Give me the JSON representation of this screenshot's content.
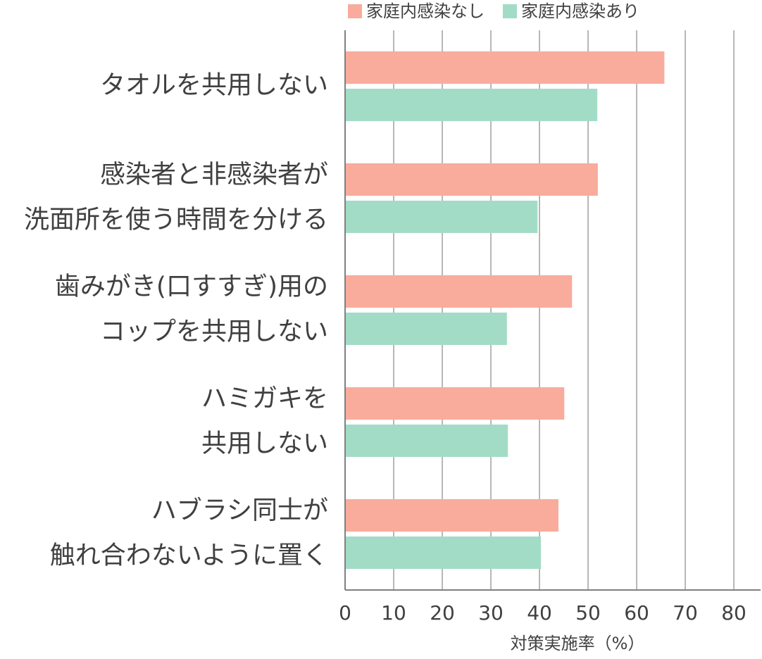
{
  "chart_data": {
    "type": "hbar",
    "x_label": "対策実施率（%）",
    "categories": [
      [
        "タオルを共用しない"
      ],
      [
        "感染者と非感染者が",
        "洗面所を使う時間を分ける"
      ],
      [
        "歯みがき(口すすぎ)用の",
        "コップを共用しない"
      ],
      [
        "ハミガキを",
        "共用しない"
      ],
      [
        "ハブラシ同士が",
        "触れ合わないように置く"
      ]
    ],
    "series": [
      {
        "name": "家庭内感染なし",
        "color": "#f9ab9c",
        "values": [
          65.7,
          52.0,
          46.7,
          45.1,
          43.9
        ]
      },
      {
        "name": "家庭内感染あり",
        "color": "#a3dcc6",
        "values": [
          51.9,
          39.6,
          33.3,
          33.5,
          40.3
        ]
      }
    ],
    "xlim": [
      0,
      85.5
    ],
    "xticks": [
      0,
      10,
      20,
      30,
      40,
      50,
      60,
      70,
      80
    ],
    "grid": true,
    "legend": "top"
  }
}
